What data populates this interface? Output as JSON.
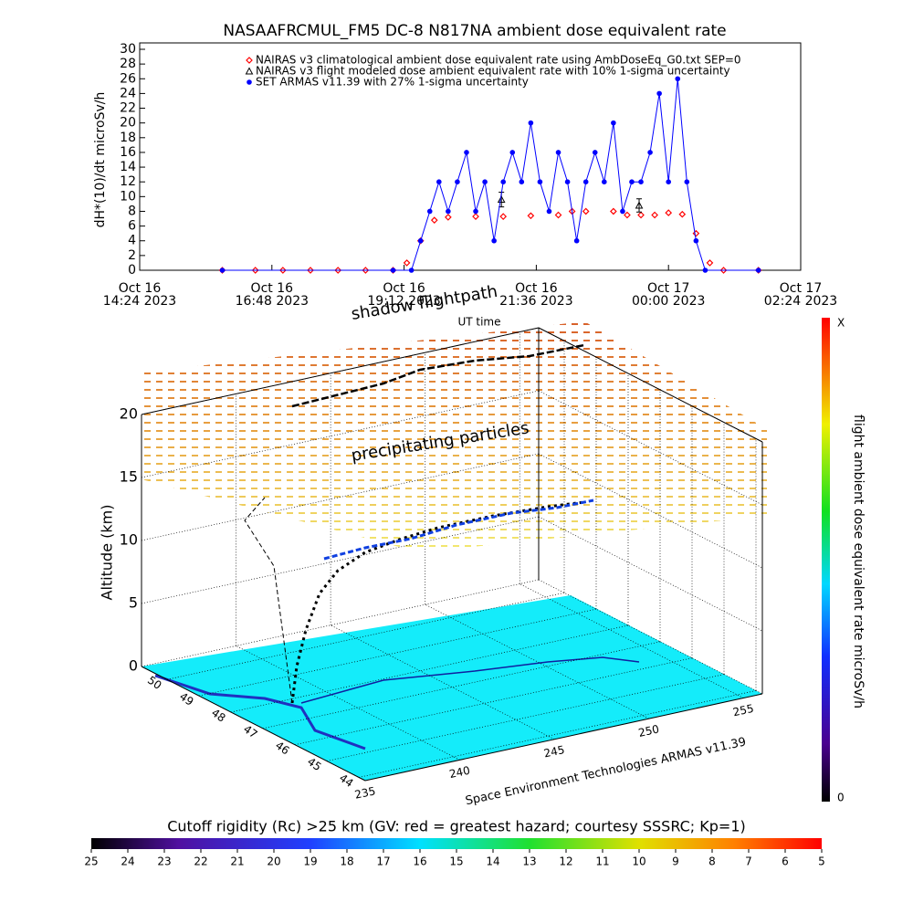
{
  "chart_data": [
    {
      "type": "line",
      "title": "NASAAFRCMUL_FM5 DC-8   N817NA ambient dose equivalent rate",
      "xlabel": "UT time",
      "ylabel": "dH*(10)/dt microSv/h",
      "xlim": [
        "2023-10-16T14:24",
        "2023-10-17T02:24"
      ],
      "xticks": [
        {
          "value": "2023-10-16T14:24",
          "label": [
            "Oct 16",
            "14:24 2023"
          ]
        },
        {
          "value": "2023-10-16T16:48",
          "label": [
            "Oct 16",
            "16:48 2023"
          ]
        },
        {
          "value": "2023-10-16T19:12",
          "label": [
            "Oct 16",
            "19:12 2023"
          ]
        },
        {
          "value": "2023-10-16T21:36",
          "label": [
            "Oct 16",
            "21:36 2023"
          ]
        },
        {
          "value": "2023-10-17T00:00",
          "label": [
            "Oct 17",
            "00:00 2023"
          ]
        },
        {
          "value": "2023-10-17T02:24",
          "label": [
            "Oct 17",
            "02:24 2023"
          ]
        }
      ],
      "ylim": [
        0,
        30
      ],
      "yticks": [
        0,
        2,
        4,
        6,
        8,
        10,
        12,
        14,
        16,
        18,
        20,
        22,
        24,
        26,
        28,
        30
      ],
      "legend": "top",
      "series": [
        {
          "name": "NAIRAS v3 climatological ambient dose equivalent rate using AmbDoseEq_G0.txt SEP=0",
          "color": "#ff0000",
          "marker": "diamond",
          "line": false,
          "x": [
            "2023-10-16T15:54",
            "2023-10-16T16:30",
            "2023-10-16T17:00",
            "2023-10-16T17:30",
            "2023-10-16T18:00",
            "2023-10-16T18:30",
            "2023-10-16T19:00",
            "2023-10-16T19:15",
            "2023-10-16T19:30",
            "2023-10-16T19:45",
            "2023-10-16T20:00",
            "2023-10-16T20:30",
            "2023-10-16T21:00",
            "2023-10-16T21:30",
            "2023-10-16T22:00",
            "2023-10-16T22:15",
            "2023-10-16T22:30",
            "2023-10-16T23:00",
            "2023-10-16T23:15",
            "2023-10-16T23:30",
            "2023-10-16T23:45",
            "2023-10-17T00:00",
            "2023-10-17T00:15",
            "2023-10-17T00:30",
            "2023-10-17T00:45",
            "2023-10-17T01:00",
            "2023-10-17T01:38"
          ],
          "values": [
            0,
            0,
            0,
            0,
            0,
            0,
            0,
            1,
            4,
            6.8,
            7.2,
            7.3,
            7.3,
            7.4,
            7.5,
            8,
            8,
            8,
            7.5,
            7.5,
            7.5,
            7.8,
            7.6,
            5,
            1,
            0,
            0
          ]
        },
        {
          "name": "NAIRAS v3 flight modeled dose ambient equivalent rate with 10% 1-sigma uncertainty",
          "color": "#000000",
          "marker": "triangle",
          "line": false,
          "x": [
            "2023-10-16T20:58",
            "2023-10-16T23:28"
          ],
          "values": [
            9.6,
            8.8
          ],
          "errors": [
            1.0,
            0.9
          ]
        },
        {
          "name": "SET ARMAS v11.39 with 27% 1-sigma uncertainty",
          "color": "#0000ff",
          "marker": "circle",
          "line": true,
          "x": [
            "2023-10-16T15:54",
            "2023-10-16T19:00",
            "2023-10-16T19:20",
            "2023-10-16T19:30",
            "2023-10-16T19:40",
            "2023-10-16T19:50",
            "2023-10-16T20:00",
            "2023-10-16T20:10",
            "2023-10-16T20:20",
            "2023-10-16T20:30",
            "2023-10-16T20:40",
            "2023-10-16T20:50",
            "2023-10-16T21:00",
            "2023-10-16T21:10",
            "2023-10-16T21:20",
            "2023-10-16T21:30",
            "2023-10-16T21:40",
            "2023-10-16T21:50",
            "2023-10-16T22:00",
            "2023-10-16T22:10",
            "2023-10-16T22:20",
            "2023-10-16T22:30",
            "2023-10-16T22:40",
            "2023-10-16T22:50",
            "2023-10-16T23:00",
            "2023-10-16T23:10",
            "2023-10-16T23:20",
            "2023-10-16T23:30",
            "2023-10-16T23:40",
            "2023-10-16T23:50",
            "2023-10-17T00:00",
            "2023-10-17T00:10",
            "2023-10-17T00:20",
            "2023-10-17T00:30",
            "2023-10-17T00:40",
            "2023-10-17T01:38"
          ],
          "values": [
            0,
            0,
            0,
            4,
            8,
            12,
            8,
            12,
            16,
            8,
            12,
            4,
            12,
            16,
            12,
            20,
            12,
            8,
            16,
            12,
            4,
            12,
            16,
            12,
            20,
            8,
            12,
            12,
            16,
            24,
            12,
            26,
            12,
            4,
            0,
            0
          ]
        }
      ]
    },
    {
      "type": "surface3d",
      "annotations": [
        "shadow flightpath",
        "precipitating particles"
      ],
      "zlabel": "Altitude (km)",
      "credit": "Space Environment Technologies ARMAS v11.39",
      "xlim": [
        235,
        256
      ],
      "xticks": [
        235,
        240,
        245,
        250,
        255
      ],
      "ylim": [
        43.8,
        50.8
      ],
      "yticks": [
        44,
        45,
        46,
        47,
        48,
        49,
        50
      ],
      "zlim": [
        0,
        20
      ],
      "zticks": [
        0,
        5,
        10,
        15,
        20
      ]
    },
    {
      "type": "colorbar",
      "orientation": "vertical",
      "label": "flight ambient dose equivalent rate microSv/h",
      "low": 0,
      "high": "X"
    },
    {
      "type": "colorbar",
      "orientation": "horizontal",
      "title": "Cutoff rigidity (Rc) >25 km (GV: red = greatest hazard; courtesy SSSRC; Kp=1)",
      "lim": [
        25,
        5
      ],
      "ticks": [
        25,
        24,
        23,
        22,
        21,
        20,
        19,
        18,
        17,
        16,
        15,
        14,
        13,
        12,
        11,
        10,
        9,
        8,
        7,
        6,
        5
      ]
    }
  ]
}
